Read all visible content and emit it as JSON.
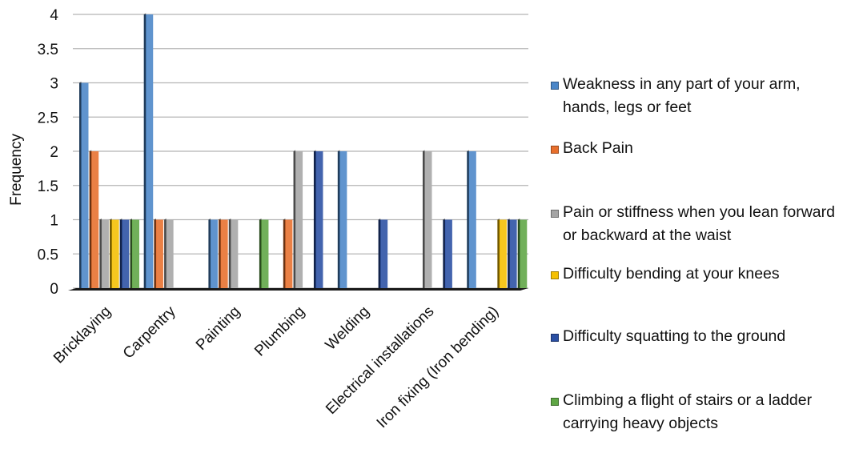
{
  "chart_data": {
    "type": "bar",
    "ylabel": "Frequency",
    "xlabel": "",
    "ylim": [
      0,
      4
    ],
    "yticks": [
      "0",
      "0.5",
      "1",
      "1.5",
      "2",
      "2.5",
      "3",
      "3.5",
      "4"
    ],
    "grid": true,
    "legend_position": "right",
    "categories": [
      "Bricklaying",
      "Carpentry",
      "Painting",
      "Plumbing",
      "Welding",
      "Electrical installations",
      "Iron fixing (Iron bending)"
    ],
    "series": [
      {
        "name": "Weakness in any part of your arm, hands, legs or feet",
        "color": "#4a86c8",
        "values": [
          3,
          4,
          1,
          0,
          2,
          0,
          2
        ]
      },
      {
        "name": "Back Pain",
        "color": "#e86f2c",
        "values": [
          2,
          1,
          1,
          1,
          0,
          0,
          0
        ]
      },
      {
        "name": "Pain or stiffness when you lean forward or backward at the waist",
        "color": "#a5a5a5",
        "values": [
          1,
          1,
          1,
          2,
          0,
          2,
          0
        ]
      },
      {
        "name": "Difficulty bending at your knees",
        "color": "#f5c000",
        "values": [
          1,
          0,
          0,
          0,
          0,
          0,
          1
        ]
      },
      {
        "name": "Difficulty squatting to the ground",
        "color": "#2a4fa3",
        "values": [
          1,
          0,
          0,
          2,
          1,
          1,
          1
        ]
      },
      {
        "name": "Climbing a flight of stairs or a ladder carrying heavy objects",
        "color": "#5ea644",
        "values": [
          1,
          0,
          1,
          0,
          0,
          0,
          1
        ]
      }
    ]
  }
}
